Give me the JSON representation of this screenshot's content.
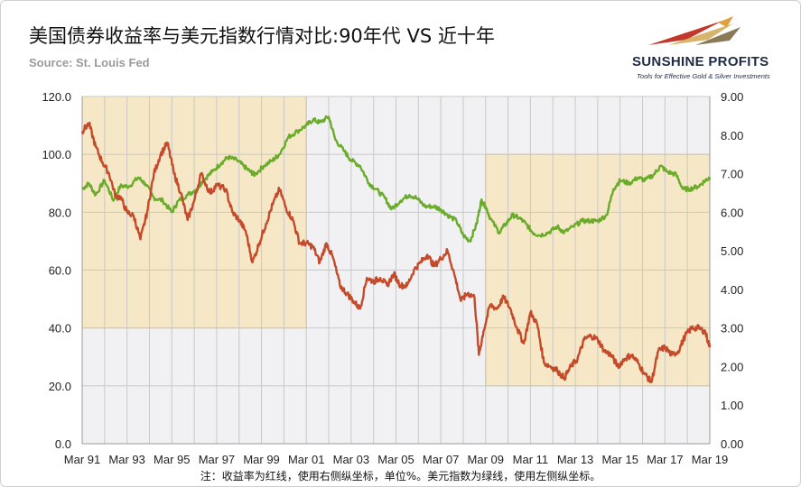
{
  "title": "美国债券收益率与美元指数行情对比:90年代 VS 近十年",
  "source": "Source: St. Louis Fed",
  "brand": {
    "name": "SUNSHINE PROFITS",
    "tagline": "Tools for Effective Gold & Silver Investments"
  },
  "note": "注：收益率为红线，使用右侧纵坐标，单位%。美元指数为绿线，使用左侧纵坐标。",
  "chart_data": {
    "type": "line",
    "x_ticks": [
      "Mar 91",
      "Mar 93",
      "Mar 95",
      "Mar 97",
      "Mar 99",
      "Mar 01",
      "Mar 03",
      "Mar 05",
      "Mar 07",
      "Mar 09",
      "Mar 11",
      "Mar 13",
      "Mar 15",
      "Mar 17",
      "Mar 19"
    ],
    "left_axis": {
      "ticks": [
        "0.0",
        "20.0",
        "40.0",
        "60.0",
        "80.0",
        "100.0",
        "120.0"
      ],
      "ylim": [
        0,
        120
      ]
    },
    "right_axis": {
      "ticks": [
        "0.00",
        "1.00",
        "2.00",
        "3.00",
        "4.00",
        "5.00",
        "6.00",
        "7.00",
        "8.00",
        "9.00"
      ],
      "ylim": [
        0,
        9
      ]
    },
    "highlight_periods": [
      {
        "from": 1991.2,
        "to": 2001.2,
        "left_y": [
          40,
          120
        ]
      },
      {
        "from": 2009.2,
        "to": 2019.2,
        "left_y": [
          20,
          100
        ]
      }
    ],
    "series": [
      {
        "axis": "left",
        "color": "#6aab2a",
        "x": [
          1991.2,
          1991.5,
          1991.8,
          1992.2,
          1992.6,
          1992.9,
          1993.3,
          1993.7,
          1994.0,
          1994.4,
          1994.8,
          1995.2,
          1995.5,
          1995.9,
          1996.3,
          1996.6,
          1997.0,
          1997.4,
          1997.7,
          1998.1,
          1998.4,
          1998.7,
          1998.9,
          1999.3,
          1999.7,
          2000.0,
          2000.4,
          2000.8,
          2001.2,
          2001.5,
          2001.8,
          2002.2,
          2002.5,
          2002.9,
          2003.2,
          2003.6,
          2004.0,
          2004.3,
          2004.7,
          2005.0,
          2005.4,
          2005.8,
          2006.1,
          2006.5,
          2006.9,
          2007.2,
          2007.5,
          2007.9,
          2008.2,
          2008.5,
          2008.8,
          2009.0,
          2009.2,
          2009.4,
          2009.8,
          2010.1,
          2010.4,
          2010.7,
          2011.0,
          2011.3,
          2011.6,
          2012.0,
          2012.4,
          2012.7,
          2013.1,
          2013.5,
          2013.9,
          2014.2,
          2014.6,
          2014.9,
          2015.2,
          2015.6,
          2016.0,
          2016.3,
          2016.7,
          2017.0,
          2017.3,
          2017.7,
          2018.0,
          2018.3,
          2018.7,
          2019.0,
          2019.2
        ],
        "values": [
          88,
          90,
          86,
          91,
          84,
          89,
          89,
          92,
          90,
          85,
          84,
          80,
          84,
          86,
          88,
          91,
          94,
          97,
          99,
          98,
          96,
          94,
          93,
          96,
          98,
          100,
          106,
          108,
          110,
          112,
          111,
          113,
          105,
          101,
          98,
          96,
          90,
          88,
          85,
          81,
          84,
          86,
          85,
          82,
          82,
          81,
          79,
          77,
          72,
          70,
          76,
          84,
          82,
          78,
          73,
          76,
          79,
          78,
          76,
          73,
          72,
          73,
          75,
          73,
          75,
          77,
          77,
          77,
          79,
          88,
          91,
          90,
          92,
          91,
          93,
          96,
          94,
          93,
          88,
          88,
          89,
          91,
          92
        ]
      },
      {
        "axis": "right",
        "color": "#c44a2a",
        "x": [
          1991.2,
          1991.5,
          1991.8,
          1992.1,
          1992.4,
          1992.7,
          1992.9,
          1993.2,
          1993.5,
          1993.8,
          1994.1,
          1994.4,
          1994.7,
          1995.0,
          1995.3,
          1995.6,
          1995.9,
          1996.2,
          1996.5,
          1996.9,
          1997.2,
          1997.6,
          1997.9,
          1998.2,
          1998.5,
          1998.8,
          1999.1,
          1999.4,
          1999.7,
          2000.0,
          2000.3,
          2000.6,
          2000.9,
          2001.2,
          2001.5,
          2001.8,
          2002.1,
          2002.4,
          2002.7,
          2003.0,
          2003.3,
          2003.6,
          2003.9,
          2004.2,
          2004.5,
          2004.8,
          2005.1,
          2005.4,
          2005.7,
          2006.0,
          2006.3,
          2006.6,
          2006.9,
          2007.2,
          2007.5,
          2007.8,
          2008.1,
          2008.4,
          2008.7,
          2008.9,
          2009.1,
          2009.4,
          2009.7,
          2010.0,
          2010.3,
          2010.6,
          2010.9,
          2011.2,
          2011.5,
          2011.8,
          2012.1,
          2012.4,
          2012.7,
          2013.0,
          2013.3,
          2013.6,
          2013.9,
          2014.2,
          2014.5,
          2014.8,
          2015.1,
          2015.4,
          2015.7,
          2016.0,
          2016.3,
          2016.6,
          2016.9,
          2017.2,
          2017.5,
          2017.8,
          2018.1,
          2018.4,
          2018.7,
          2019.0,
          2019.2
        ],
        "values": [
          8.1,
          8.3,
          7.7,
          7.3,
          7.0,
          6.4,
          6.4,
          6.0,
          5.9,
          5.3,
          6.0,
          7.0,
          7.5,
          7.8,
          7.0,
          6.5,
          5.8,
          6.3,
          7.0,
          6.5,
          6.7,
          6.6,
          6.0,
          5.8,
          5.5,
          4.7,
          5.2,
          5.7,
          6.2,
          6.6,
          6.1,
          5.8,
          5.2,
          5.2,
          5.1,
          4.7,
          5.2,
          4.8,
          4.1,
          3.9,
          3.7,
          3.5,
          4.3,
          4.2,
          4.3,
          4.1,
          4.4,
          4.1,
          4.1,
          4.5,
          4.7,
          4.9,
          4.6,
          4.8,
          5.0,
          4.4,
          3.7,
          3.9,
          3.8,
          2.3,
          2.9,
          3.6,
          3.5,
          3.8,
          3.5,
          3.0,
          2.6,
          3.4,
          3.1,
          2.1,
          2.0,
          1.9,
          1.7,
          2.0,
          2.2,
          2.7,
          2.8,
          2.7,
          2.4,
          2.3,
          2.0,
          2.2,
          2.3,
          2.1,
          1.8,
          1.6,
          2.4,
          2.5,
          2.3,
          2.4,
          2.8,
          3.0,
          3.0,
          2.9,
          2.5
        ]
      }
    ]
  }
}
